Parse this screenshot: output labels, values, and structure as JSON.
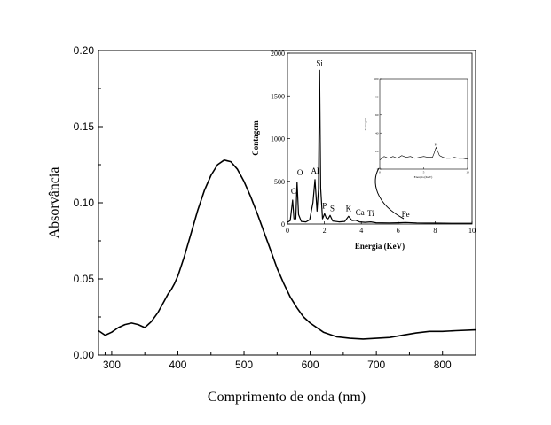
{
  "chart_data": [
    {
      "type": "line",
      "xlabel": "Comprimento de onda (nm)",
      "ylabel": "Absorvância",
      "xlim": [
        280,
        850
      ],
      "ylim": [
        0,
        0.2
      ],
      "xticks": [
        "300",
        "400",
        "500",
        "600",
        "700",
        "800"
      ],
      "yticks": [
        "0.00",
        "0.05",
        "0.10",
        "0.15",
        "0.20"
      ],
      "grid": false,
      "series": [
        {
          "x": [
            280,
            290,
            300,
            310,
            320,
            330,
            340,
            350,
            360,
            370,
            380,
            385,
            390,
            395,
            400,
            410,
            420,
            430,
            440,
            450,
            460,
            470,
            480,
            490,
            500,
            510,
            520,
            530,
            540,
            550,
            560,
            570,
            580,
            590,
            600,
            620,
            640,
            660,
            680,
            700,
            720,
            740,
            760,
            780,
            800,
            820,
            850
          ],
          "y": [
            0.016,
            0.013,
            0.015,
            0.018,
            0.02,
            0.021,
            0.02,
            0.018,
            0.022,
            0.028,
            0.036,
            0.04,
            0.043,
            0.047,
            0.052,
            0.065,
            0.08,
            0.095,
            0.108,
            0.118,
            0.125,
            0.128,
            0.127,
            0.122,
            0.114,
            0.104,
            0.093,
            0.081,
            0.069,
            0.057,
            0.047,
            0.038,
            0.031,
            0.025,
            0.021,
            0.015,
            0.012,
            0.011,
            0.0105,
            0.011,
            0.0115,
            0.013,
            0.0145,
            0.0155,
            0.0155,
            0.016,
            0.0165
          ]
        }
      ]
    },
    {
      "type": "line",
      "xlabel": "Energia (KeV)",
      "ylabel": "Contagem",
      "xlim": [
        0,
        10
      ],
      "ylim": [
        0,
        2000
      ],
      "xticks": [
        "0",
        "2",
        "4",
        "6",
        "8",
        "10"
      ],
      "yticks": [
        "0",
        "500",
        "1000",
        "1500",
        "2000"
      ],
      "grid": false,
      "annotations": [
        "C",
        "O",
        "Al",
        "Si",
        "P",
        "S",
        "K",
        "Ca",
        "Ti",
        "Fe"
      ],
      "series": [
        {
          "x": [
            0,
            0.15,
            0.28,
            0.35,
            0.45,
            0.52,
            0.6,
            0.75,
            1.0,
            1.2,
            1.38,
            1.49,
            1.6,
            1.68,
            1.74,
            1.8,
            1.9,
            2.01,
            2.1,
            2.2,
            2.31,
            2.45,
            2.8,
            3.1,
            3.31,
            3.5,
            3.69,
            3.9,
            4.2,
            4.51,
            4.8,
            5.5,
            6.0,
            6.4,
            7.0,
            8.0,
            9.0,
            10
          ],
          "y": [
            20,
            40,
            280,
            60,
            60,
            490,
            110,
            30,
            25,
            50,
            250,
            520,
            150,
            400,
            1800,
            420,
            60,
            120,
            70,
            60,
            100,
            35,
            25,
            30,
            90,
            40,
            45,
            25,
            20,
            25,
            15,
            12,
            14,
            18,
            12,
            10,
            8,
            8
          ]
        }
      ]
    },
    {
      "type": "line",
      "xlabel": "Energia (KeV)",
      "ylabel": "Contagem",
      "xlim": [
        0,
        10
      ],
      "ylim": [
        0,
        100
      ],
      "xticks": [
        "0",
        "5",
        "10"
      ],
      "yticks": [
        "0",
        "20",
        "40",
        "60",
        "80",
        "100"
      ],
      "annotations": [
        "Fe"
      ],
      "series": [
        {
          "x": [
            0,
            0.5,
            1,
            1.5,
            2,
            2.5,
            3,
            3.5,
            4,
            4.5,
            5,
            5.5,
            6,
            6.2,
            6.4,
            6.6,
            6.8,
            7.2,
            7.6,
            8,
            8.5,
            9,
            9.5,
            10
          ],
          "y": [
            10,
            14,
            12,
            14,
            12,
            15,
            13,
            14,
            12,
            13,
            14,
            13,
            13,
            18,
            24,
            20,
            15,
            13,
            12,
            12,
            13,
            12,
            12,
            11
          ]
        }
      ]
    }
  ]
}
